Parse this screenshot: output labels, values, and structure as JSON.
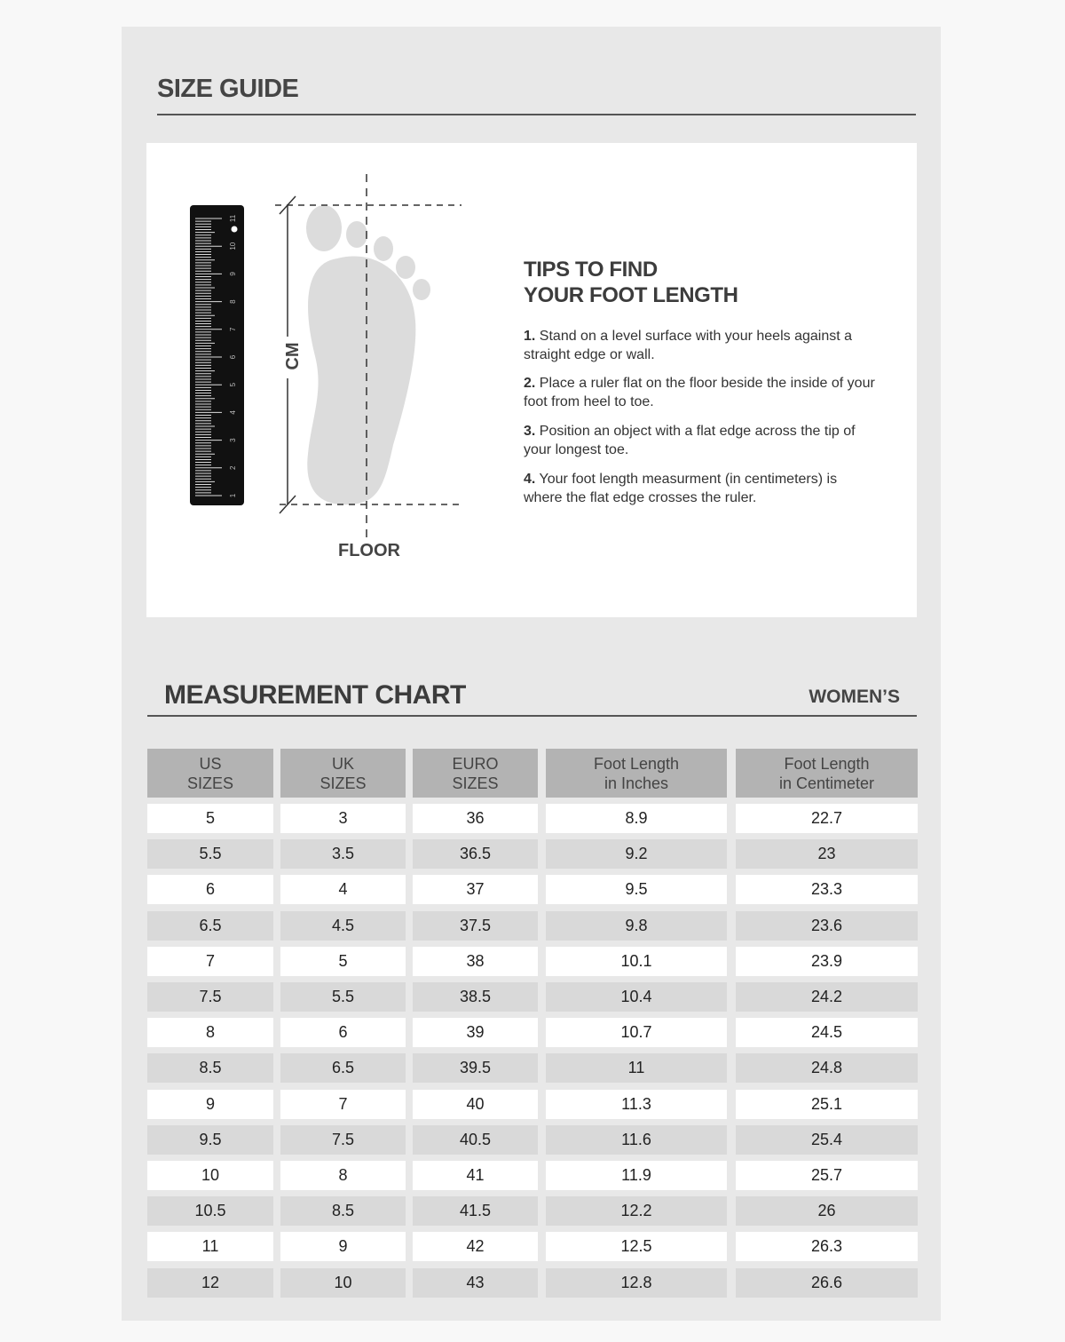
{
  "title": "SIZE GUIDE",
  "diagram": {
    "axis_label": "CM",
    "floor_label": "FLOOR",
    "ruler_numbers": [
      "1",
      "2",
      "3",
      "4",
      "5",
      "6",
      "7",
      "8",
      "9",
      "10",
      "11"
    ]
  },
  "tips": {
    "heading_line1": "TIPS TO FIND",
    "heading_line2": "YOUR FOOT LENGTH",
    "items": [
      {
        "num": "1.",
        "text": "Stand on a level surface with your heels against a straight edge or wall."
      },
      {
        "num": "2.",
        "text": "Place a ruler flat on the floor beside the inside of your foot from heel to toe."
      },
      {
        "num": "3.",
        "text": "Position an object with a flat edge across the tip of your longest toe."
      },
      {
        "num": "4.",
        "text": "Your foot length measurment (in centimeters) is where the flat edge crosses the ruler."
      }
    ]
  },
  "chart": {
    "title": "MEASUREMENT CHART",
    "category": "WOMEN’S",
    "headers": [
      [
        "US",
        "SIZES"
      ],
      [
        "UK",
        "SIZES"
      ],
      [
        "EURO",
        "SIZES"
      ],
      [
        "Foot Length",
        "in Inches"
      ],
      [
        "Foot Length",
        "in Centimeter"
      ]
    ],
    "rows": [
      [
        "5",
        "3",
        "36",
        "8.9",
        "22.7"
      ],
      [
        "5.5",
        "3.5",
        "36.5",
        "9.2",
        "23"
      ],
      [
        "6",
        "4",
        "37",
        "9.5",
        "23.3"
      ],
      [
        "6.5",
        "4.5",
        "37.5",
        "9.8",
        "23.6"
      ],
      [
        "7",
        "5",
        "38",
        "10.1",
        "23.9"
      ],
      [
        "7.5",
        "5.5",
        "38.5",
        "10.4",
        "24.2"
      ],
      [
        "8",
        "6",
        "39",
        "10.7",
        "24.5"
      ],
      [
        "8.5",
        "6.5",
        "39.5",
        "11",
        "24.8"
      ],
      [
        "9",
        "7",
        "40",
        "11.3",
        "25.1"
      ],
      [
        "9.5",
        "7.5",
        "40.5",
        "11.6",
        "25.4"
      ],
      [
        "10",
        "8",
        "41",
        "11.9",
        "25.7"
      ],
      [
        "10.5",
        "8.5",
        "41.5",
        "12.2",
        "26"
      ],
      [
        "11",
        "9",
        "42",
        "12.5",
        "26.3"
      ],
      [
        "12",
        "10",
        "43",
        "12.8",
        "26.6"
      ]
    ]
  },
  "colors": {
    "header_bg": "#b3b3b3",
    "alt_row_bg": "#d9d9d9",
    "card_bg": "#e8e8e8"
  }
}
